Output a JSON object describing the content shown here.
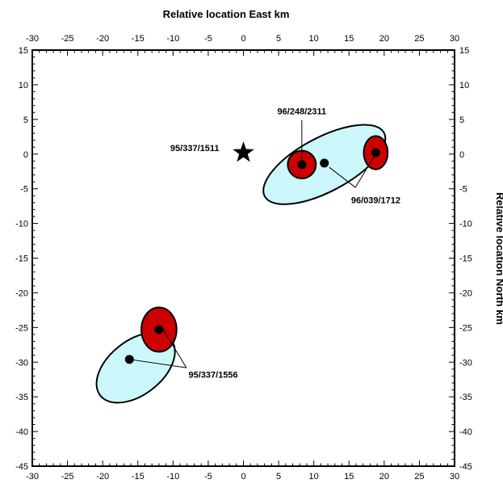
{
  "chart_data": {
    "type": "scatter",
    "title": "",
    "xlabel": "Relative location East     km",
    "ylabel": "Relative location North     km",
    "xlim": [
      -30,
      30
    ],
    "ylim": [
      -45,
      15
    ],
    "x_major_ticks": [
      -30,
      -25,
      -20,
      -15,
      -10,
      -5,
      0,
      5,
      10,
      15,
      20,
      25,
      30
    ],
    "y_major_ticks": [
      15,
      10,
      5,
      0,
      -5,
      -10,
      -15,
      -20,
      -25,
      -30,
      -35,
      -40,
      -45
    ],
    "grid": false,
    "colors": {
      "light_ellipse": "#ccf7fa",
      "dark_ellipse": "#cc0000",
      "outline": "#000000"
    },
    "reference_event": {
      "label": "95/337/1511",
      "x": 0,
      "y": 0.2,
      "marker": "star"
    },
    "ellipses": [
      {
        "x": 11.5,
        "y": -1.5,
        "rx": 9.6,
        "ry": 3.9,
        "angle": 28,
        "style": "light"
      },
      {
        "x": 8.3,
        "y": -1.5,
        "rx": 2.0,
        "ry": 2.0,
        "angle": 0,
        "style": "dark"
      },
      {
        "x": 18.8,
        "y": 0.2,
        "rx": 1.7,
        "ry": 2.4,
        "angle": 0,
        "style": "dark"
      },
      {
        "x": -15.3,
        "y": -30.8,
        "rx": 6.4,
        "ry": 3.9,
        "angle": 38,
        "style": "light"
      },
      {
        "x": -12.0,
        "y": -25.3,
        "rx": 2.5,
        "ry": 3.2,
        "angle": 0,
        "style": "dark"
      }
    ],
    "points": [
      {
        "x": 8.3,
        "y": -1.5
      },
      {
        "x": 11.5,
        "y": -1.3
      },
      {
        "x": 18.8,
        "y": 0.2
      },
      {
        "x": -12.0,
        "y": -25.3
      },
      {
        "x": -16.2,
        "y": -29.6
      }
    ],
    "annotations": [
      {
        "text": "96/248/2311",
        "x": 8.3,
        "y": 6.2,
        "anchor": "middle",
        "lines": [
          [
            8.3,
            4.9,
            8.3,
            -1.5
          ]
        ]
      },
      {
        "text": "96/039/1712",
        "x": 15.3,
        "y": -6.6,
        "anchor": "start",
        "lines": [
          [
            12.2,
            -1.9,
            15.9,
            -4.8
          ],
          [
            15.9,
            -4.8,
            18.9,
            0.2
          ]
        ]
      },
      {
        "text": "95/337/1556",
        "x": -7.8,
        "y": -31.8,
        "anchor": "start",
        "lines": [
          [
            -16.2,
            -29.6,
            -8.1,
            -30.8
          ],
          [
            -8.1,
            -30.8,
            -11.4,
            -25.3
          ]
        ]
      }
    ]
  }
}
